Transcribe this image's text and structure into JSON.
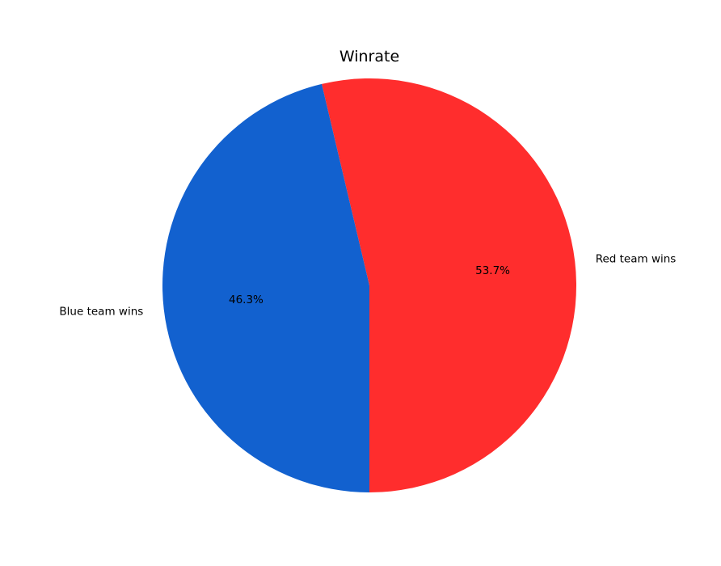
{
  "chart_data": {
    "type": "pie",
    "title": "Winrate",
    "slices": [
      {
        "label": "Red team wins",
        "value": 53.7,
        "pct_label": "53.7%",
        "color": "#ff2d2d"
      },
      {
        "label": "Blue team wins",
        "value": 46.3,
        "pct_label": "46.3%",
        "color": "#1261cf"
      }
    ],
    "legend": "none"
  }
}
